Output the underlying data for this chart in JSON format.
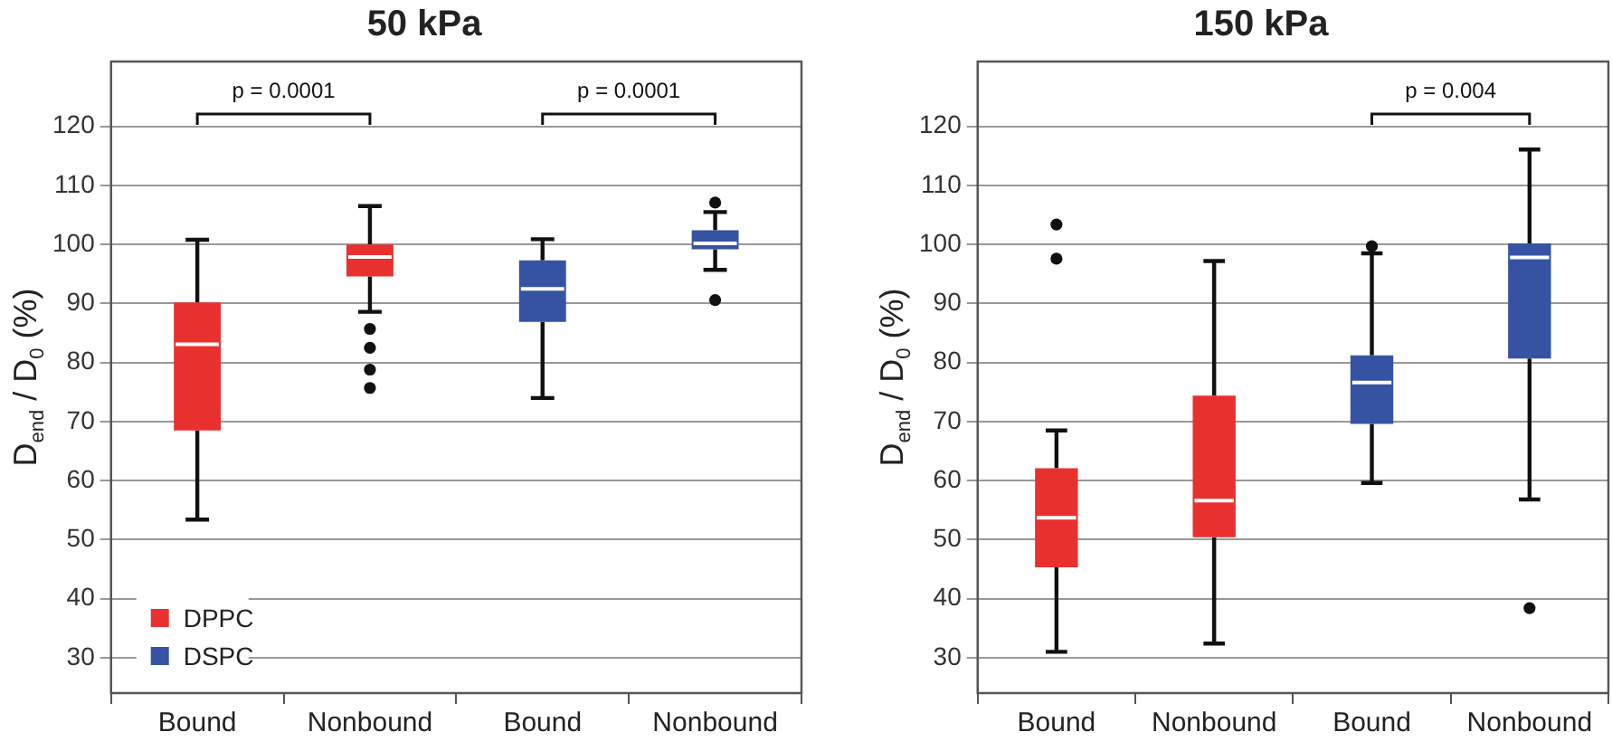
{
  "chart_data": [
    {
      "type": "box",
      "title": "50 kPa",
      "ylabel": "D$_{end}$ / D$_{0}$ (%)",
      "categories": [
        "Bound",
        "Nonbound",
        "Bound",
        "Nonbound"
      ],
      "ylim": [
        24,
        131
      ],
      "yticks": [
        30,
        40,
        50,
        60,
        70,
        80,
        90,
        100,
        110,
        120
      ],
      "grid": "y",
      "legend": "bottom left",
      "annotations": [
        "p = 0.0001",
        "p = 0.0001"
      ],
      "series": [
        {
          "name": "DPPC",
          "color": "#e8312f",
          "boxes": [
            {
              "low": 53.4,
              "q1": 68.5,
              "median": 83.1,
              "q3": 90.2,
              "high": 100.8
            },
            {
              "low": 88.6,
              "q1": 94.6,
              "median": 97.9,
              "q3": 100,
              "high": 106.5,
              "outliers": [
                85.7,
                82.5,
                78.8,
                75.7
              ]
            },
            null,
            null
          ]
        },
        {
          "name": "DSPC",
          "color": "#3653a3",
          "boxes": [
            null,
            null,
            {
              "low": 74,
              "q1": 86.9,
              "median": 92.5,
              "q3": 97.3,
              "high": 100.9
            },
            {
              "low": 95.7,
              "q1": 99.2,
              "median": 100.2,
              "q3": 102.4,
              "high": 105.5,
              "outliers": [
                107.1,
                90.6
              ]
            }
          ]
        }
      ]
    },
    {
      "type": "box",
      "title": "150 kPa",
      "ylabel": "D$_{end}$ / D$_{0}$ (%)",
      "categories": [
        "Bound",
        "Nonbound",
        "Bound",
        "Nonbound"
      ],
      "ylim": [
        24,
        131
      ],
      "yticks": [
        30,
        40,
        50,
        60,
        70,
        80,
        90,
        100,
        110,
        120
      ],
      "grid": "y",
      "annotations": [
        "p = 0.004"
      ],
      "series": [
        {
          "color": "#e8312f",
          "boxes": [
            {
              "low": 31,
              "q1": 45.3,
              "median": 53.7,
              "q3": 62.1,
              "high": 68.5,
              "outliers": [
                103.4,
                97.6
              ]
            },
            {
              "low": 32.4,
              "q1": 50.4,
              "median": 56.6,
              "q3": 74.4,
              "high": 97.2
            },
            null,
            null
          ]
        },
        {
          "color": "#3653a3",
          "boxes": [
            null,
            null,
            {
              "low": 59.6,
              "q1": 69.6,
              "median": 76.6,
              "q3": 81.2,
              "high": 98.5,
              "outliers": [
                99.7
              ]
            },
            {
              "low": 56.8,
              "q1": 80.7,
              "median": 97.8,
              "q3": 100.2,
              "high": 116.1,
              "outliers": [
                38.4
              ]
            }
          ]
        }
      ]
    }
  ]
}
